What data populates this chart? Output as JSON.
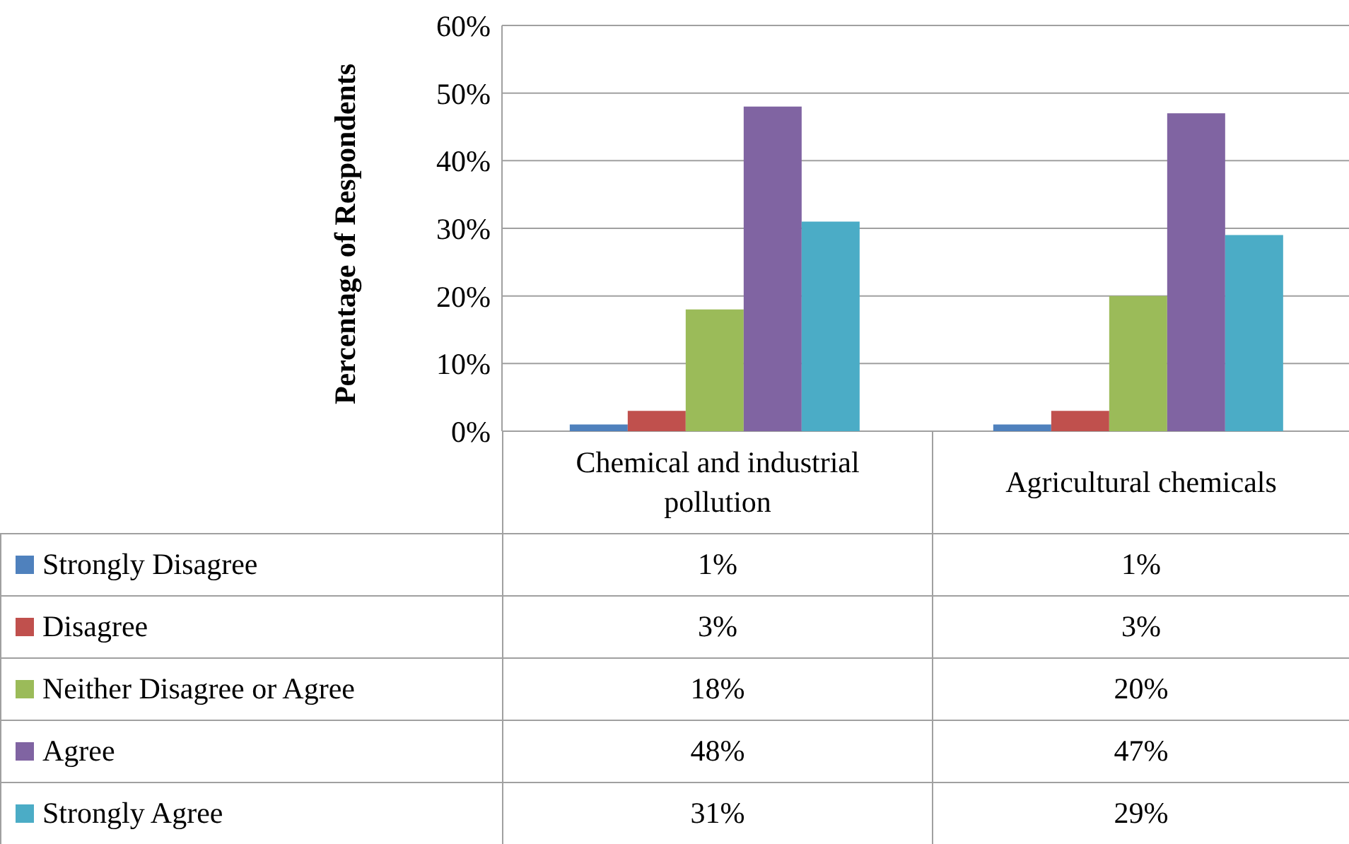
{
  "chart_data": {
    "type": "bar",
    "ylabel": "Percentage of Respondents",
    "categories": [
      "Chemical and industrial pollution",
      "Agricultural chemicals"
    ],
    "series": [
      {
        "name": "Strongly Disagree",
        "color": "#4f81bd",
        "values": [
          1,
          1
        ],
        "value_labels": [
          "1%",
          "1%"
        ]
      },
      {
        "name": "Disagree",
        "color": "#c0504d",
        "values": [
          3,
          3
        ],
        "value_labels": [
          "3%",
          "3%"
        ]
      },
      {
        "name": "Neither Disagree or Agree",
        "color": "#9bbb59",
        "values": [
          18,
          20
        ],
        "value_labels": [
          "18%",
          "20%"
        ]
      },
      {
        "name": "Agree",
        "color": "#8064a2",
        "values": [
          48,
          47
        ],
        "value_labels": [
          "48%",
          "47%"
        ]
      },
      {
        "name": "Strongly Agree",
        "color": "#4bacc6",
        "values": [
          31,
          29
        ],
        "value_labels": [
          "31%",
          "29%"
        ]
      }
    ],
    "ylim": [
      0,
      60
    ],
    "yticks": [
      {
        "value": 0,
        "label": "0%"
      },
      {
        "value": 10,
        "label": "10%"
      },
      {
        "value": 20,
        "label": "20%"
      },
      {
        "value": 30,
        "label": "30%"
      },
      {
        "value": 40,
        "label": "40%"
      },
      {
        "value": 50,
        "label": "50%"
      },
      {
        "value": 60,
        "label": "60%"
      }
    ],
    "grid": "y",
    "legend": "bottom"
  }
}
